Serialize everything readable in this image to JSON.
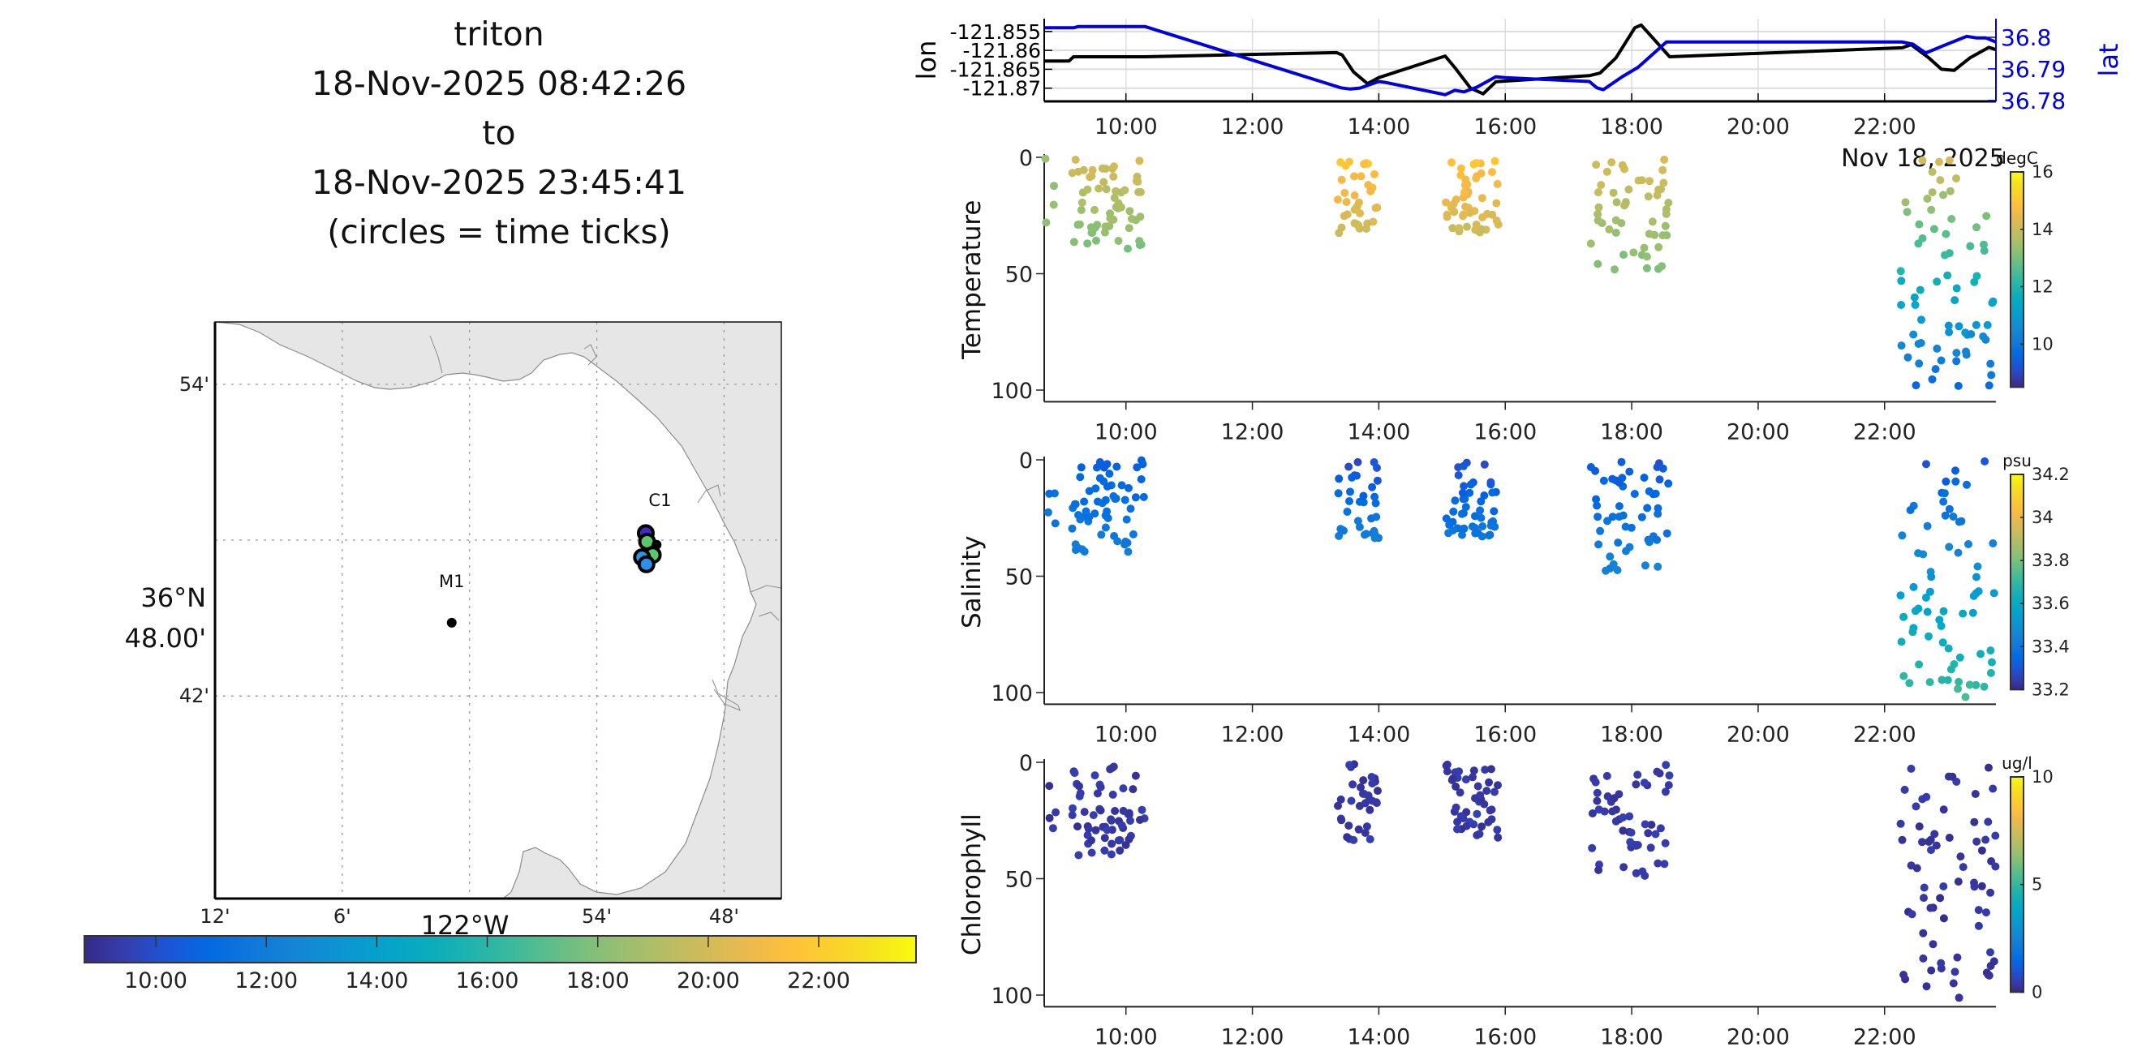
{
  "title": {
    "platform": "triton",
    "start": "18-Nov-2025 08:42:26",
    "to": "to",
    "end": "18-Nov-2025 23:45:41",
    "note": "(circles = time ticks)"
  },
  "chart_data": [
    {
      "id": "track-map",
      "type": "scatter",
      "title": "",
      "xlabel": "122°W",
      "ylabel_lines": [
        "36°N",
        "48.00'"
      ],
      "x_tick_labels": [
        "12'",
        "6'",
        "54'",
        "48'"
      ],
      "x_tick_values_deg": [
        -122.2,
        -122.1,
        -121.9,
        -121.8
      ],
      "y_tick_labels": [
        "54'",
        "42'"
      ],
      "y_tick_values_deg": [
        36.9,
        36.7
      ],
      "xlim_deg": [
        -122.2,
        -121.755
      ],
      "ylim_deg": [
        36.57,
        36.94
      ],
      "grid": true,
      "grid_lines_x_deg": [
        -122.1,
        -122.0,
        -121.9,
        -121.8
      ],
      "grid_lines_y_deg": [
        36.9,
        36.8,
        36.7
      ],
      "land_color": "#e6e6e6",
      "coast_color": "#8c8c8c",
      "stations": [
        {
          "name": "M1",
          "lon": -122.014,
          "lat": 36.747
        },
        {
          "name": "C1",
          "lon": -121.858,
          "lat": 36.797
        }
      ],
      "track_points": [
        {
          "lon": -121.8615,
          "lat": 36.8045,
          "time": "09:00",
          "color": "#4527c8"
        },
        {
          "lon": -121.8605,
          "lat": 36.799,
          "time": "17:30",
          "color": "#5cc66b"
        },
        {
          "lon": -121.856,
          "lat": 36.7905,
          "time": "18:30",
          "color": "#5cc66b"
        },
        {
          "lon": -121.8645,
          "lat": 36.789,
          "time": "14:00",
          "color": "#2f93e6"
        },
        {
          "lon": -121.861,
          "lat": 36.7845,
          "time": "13:30",
          "color": "#2e8fe8"
        },
        {
          "lon": -121.853,
          "lat": 36.797,
          "time": "current",
          "color": "#000000"
        }
      ],
      "colorbar": {
        "orientation": "horizontal",
        "colormap": "parula",
        "range": [
          "08:42",
          "23:46"
        ],
        "tick_labels": [
          "10:00",
          "12:00",
          "14:00",
          "16:00",
          "18:00",
          "20:00",
          "22:00"
        ]
      }
    },
    {
      "id": "lon-lat-timeseries",
      "type": "line",
      "xlabel": "",
      "x_tick_labels": [
        "10:00",
        "12:00",
        "14:00",
        "16:00",
        "18:00",
        "20:00",
        "22:00"
      ],
      "xlim_hours": [
        8.7072,
        23.7614
      ],
      "left_axis": {
        "label": "lon",
        "tick_labels": [
          "-121.855",
          "-121.86",
          "-121.865",
          "-121.87"
        ],
        "ticks": [
          -121.855,
          -121.86,
          -121.865,
          -121.87
        ],
        "ylim": [
          -121.8735,
          -121.8516
        ],
        "color": "#000000"
      },
      "right_axis": {
        "label": "lat",
        "tick_labels": [
          "36.8",
          "36.79",
          "36.78"
        ],
        "ticks": [
          36.8,
          36.79,
          36.78
        ],
        "ylim": [
          36.7797,
          36.8059
        ],
        "color": "#0000dd"
      },
      "grid": true,
      "series": [
        {
          "name": "lon",
          "axis": "left",
          "color": "#000000",
          "points": [
            [
              8.71,
              -121.8628
            ],
            [
              9.1,
              -121.8628
            ],
            [
              9.17,
              -121.8617
            ],
            [
              10.3,
              -121.8617
            ],
            [
              13.33,
              -121.8606
            ],
            [
              13.42,
              -121.8612
            ],
            [
              13.6,
              -121.8657
            ],
            [
              13.82,
              -121.8688
            ],
            [
              14.0,
              -121.8672
            ],
            [
              15.05,
              -121.8615
            ],
            [
              15.2,
              -121.8645
            ],
            [
              15.45,
              -121.87
            ],
            [
              15.65,
              -121.8715
            ],
            [
              15.85,
              -121.8683
            ],
            [
              17.33,
              -121.8667
            ],
            [
              17.5,
              -121.866
            ],
            [
              17.75,
              -121.862
            ],
            [
              18.05,
              -121.854
            ],
            [
              18.15,
              -121.8533
            ],
            [
              18.6,
              -121.8617
            ],
            [
              22.28,
              -121.8593
            ],
            [
              22.42,
              -121.8585
            ],
            [
              22.7,
              -121.862
            ],
            [
              22.9,
              -121.865
            ],
            [
              23.1,
              -121.8653
            ],
            [
              23.35,
              -121.862
            ],
            [
              23.65,
              -121.8592
            ],
            [
              23.76,
              -121.8598
            ]
          ]
        },
        {
          "name": "lat",
          "axis": "right",
          "color": "#0000dd",
          "points": [
            [
              8.71,
              36.803
            ],
            [
              9.17,
              36.803
            ],
            [
              9.25,
              36.8034
            ],
            [
              10.3,
              36.8034
            ],
            [
              13.4,
              36.784
            ],
            [
              13.55,
              36.7836
            ],
            [
              13.7,
              36.7839
            ],
            [
              14.0,
              36.786
            ],
            [
              14.1,
              36.7857
            ],
            [
              15.05,
              36.7818
            ],
            [
              15.2,
              36.7832
            ],
            [
              15.35,
              36.7827
            ],
            [
              15.55,
              36.7842
            ],
            [
              15.85,
              36.7875
            ],
            [
              16.0,
              36.7872
            ],
            [
              17.33,
              36.786
            ],
            [
              17.45,
              36.784
            ],
            [
              17.55,
              36.7834
            ],
            [
              17.85,
              36.7875
            ],
            [
              18.1,
              36.7905
            ],
            [
              18.55,
              36.7985
            ],
            [
              22.28,
              36.7985
            ],
            [
              22.45,
              36.7978
            ],
            [
              22.65,
              36.795
            ],
            [
              22.95,
              36.7975
            ],
            [
              23.3,
              36.8003
            ],
            [
              23.45,
              36.7998
            ],
            [
              23.6,
              36.7998
            ],
            [
              23.76,
              36.7985
            ]
          ]
        }
      ],
      "date_label": "Nov 18, 2025"
    },
    {
      "id": "temperature-profile",
      "type": "scatter",
      "ylabel": "Temperature",
      "y_tick_labels": [
        "0",
        "50",
        "100"
      ],
      "ylim": [
        0,
        105
      ],
      "y_reversed": true,
      "x_tick_labels": [
        "10:00",
        "12:00",
        "14:00",
        "16:00",
        "18:00",
        "20:00",
        "22:00"
      ],
      "xlim_hours": [
        8.7072,
        23.7614
      ],
      "colorbar": {
        "unit": "degC",
        "range": [
          8.5,
          16
        ],
        "tick_labels": [
          "16",
          "14",
          "12",
          "10"
        ],
        "ticks": [
          16,
          14,
          12,
          10
        ]
      }
    },
    {
      "id": "salinity-profile",
      "type": "scatter",
      "ylabel": "Salinity",
      "y_tick_labels": [
        "0",
        "50",
        "100"
      ],
      "ylim": [
        0,
        105
      ],
      "y_reversed": true,
      "x_tick_labels": [
        "10:00",
        "12:00",
        "14:00",
        "16:00",
        "18:00",
        "20:00",
        "22:00"
      ],
      "xlim_hours": [
        8.7072,
        23.7614
      ],
      "colorbar": {
        "unit": "psu",
        "range": [
          33.2,
          34.2
        ],
        "tick_labels": [
          "34.2",
          "34",
          "33.8",
          "33.6",
          "33.4",
          "33.2"
        ],
        "ticks": [
          34.2,
          34.0,
          33.8,
          33.6,
          33.4,
          33.2
        ]
      }
    },
    {
      "id": "chlorophyll-profile",
      "type": "scatter",
      "ylabel": "Chlorophyll",
      "y_tick_labels": [
        "0",
        "50",
        "100"
      ],
      "ylim": [
        0,
        105
      ],
      "y_reversed": true,
      "x_tick_labels": [
        "10:00",
        "12:00",
        "14:00",
        "16:00",
        "18:00",
        "20:00",
        "22:00"
      ],
      "xlim_hours": [
        8.7072,
        23.7614
      ],
      "colorbar": {
        "unit": "ug/l",
        "range": [
          0,
          10
        ],
        "tick_labels": [
          "10",
          "5",
          "0"
        ],
        "ticks": [
          10,
          5,
          0
        ]
      }
    }
  ],
  "profile_segments": [
    {
      "t0": 8.72,
      "t1": 8.9,
      "maxDepth": 33,
      "n": 4,
      "temp": [
        13.5,
        13.0
      ],
      "sal": [
        33.35,
        33.4
      ],
      "chl": [
        0.3,
        0.3
      ]
    },
    {
      "t0": 9.15,
      "t1": 10.3,
      "maxDepth": 40,
      "n": 60,
      "temp": [
        14.2,
        13.0
      ],
      "sal": [
        33.32,
        33.42
      ],
      "chl": [
        0.35,
        0.35
      ]
    },
    {
      "t0": 13.35,
      "t1": 14.0,
      "maxDepth": 34,
      "n": 34,
      "temp": [
        15.0,
        14.0
      ],
      "sal": [
        33.28,
        33.42
      ],
      "chl": [
        0.35,
        0.35
      ]
    },
    {
      "t0": 15.05,
      "t1": 15.9,
      "maxDepth": 33,
      "n": 48,
      "temp": [
        15.0,
        14.0
      ],
      "sal": [
        33.28,
        33.4
      ],
      "chl": [
        0.35,
        0.35
      ]
    },
    {
      "t0": 17.35,
      "t1": 18.6,
      "maxDepth": 50,
      "n": 52,
      "temp": [
        14.2,
        13.0
      ],
      "sal": [
        33.3,
        33.45
      ],
      "chl": [
        0.35,
        0.35
      ]
    },
    {
      "t0": 22.25,
      "t1": 23.76,
      "maxDepth": 102,
      "n": 70,
      "temp": [
        14.2,
        9.5
      ],
      "sal": [
        33.3,
        33.72
      ],
      "chl": [
        0.3,
        0.3
      ]
    }
  ]
}
